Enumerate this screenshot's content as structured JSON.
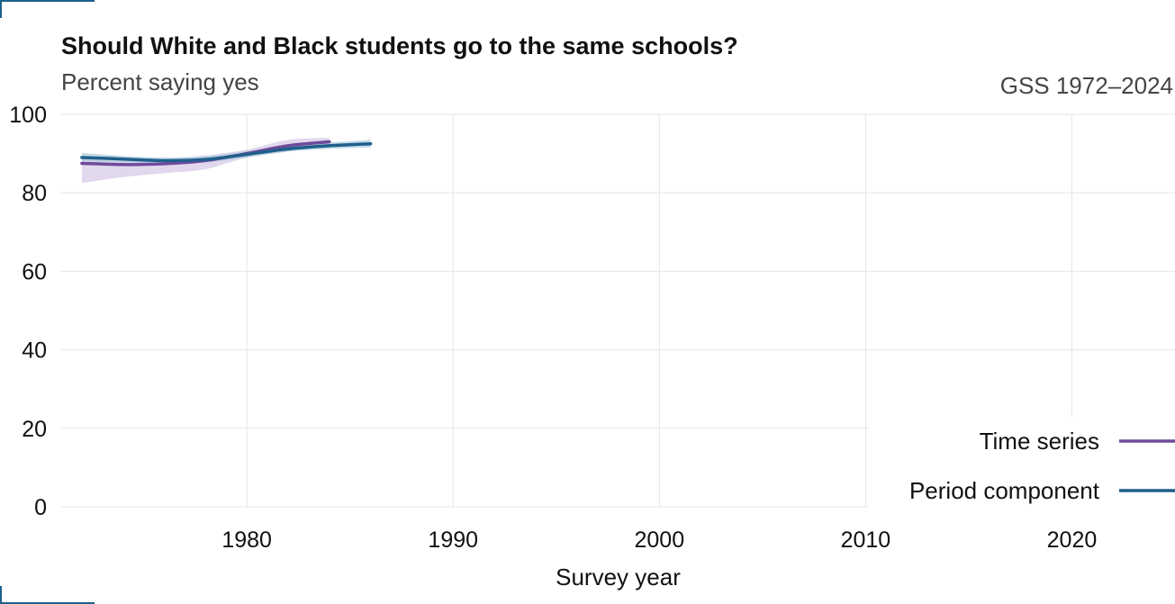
{
  "header": {
    "title": "Should White and Black students go to the same schools?",
    "subtitle": "Percent saying yes",
    "source": "GSS 1972–2024"
  },
  "colors": {
    "time_series": "#6f4a9b",
    "period_component": "#1f5f8b",
    "time_series_band": "#c9b8de",
    "period_band": "#9cc3d9",
    "grid": "#e6e6e6",
    "corner_mark": "#1f5f8b"
  },
  "chart_data": {
    "type": "line",
    "title": "Should White and Black students go to the same schools?",
    "subtitle": "Percent saying yes",
    "xlabel": "Survey year",
    "ylabel": "",
    "xlim": [
      1971,
      2025
    ],
    "ylim": [
      0,
      100
    ],
    "x_ticks": [
      1980,
      1990,
      2000,
      2010,
      2020
    ],
    "y_ticks": [
      0,
      20,
      40,
      60,
      80,
      100
    ],
    "grid": true,
    "legend_position": "bottom-right",
    "series": [
      {
        "name": "Time series",
        "color": "#6f4a9b",
        "x": [
          1972,
          1974,
          1976,
          1978,
          1980,
          1982,
          1984
        ],
        "y": [
          87.5,
          87.2,
          87.4,
          88.2,
          90.0,
          92.0,
          93.0
        ],
        "lower": [
          82.5,
          84.0,
          85.0,
          86.0,
          89.0,
          90.5,
          92.0
        ],
        "upper": [
          88.5,
          88.0,
          88.5,
          89.5,
          91.0,
          93.5,
          94.0
        ]
      },
      {
        "name": "Period component",
        "color": "#1f5f8b",
        "x": [
          1972,
          1974,
          1976,
          1978,
          1980,
          1982,
          1984,
          1986
        ],
        "y": [
          89.0,
          88.6,
          88.2,
          88.5,
          89.8,
          91.2,
          92.0,
          92.5
        ],
        "lower": [
          88.0,
          87.8,
          87.5,
          87.8,
          89.0,
          90.5,
          91.2,
          91.5
        ],
        "upper": [
          90.2,
          89.4,
          89.0,
          89.3,
          90.6,
          92.0,
          92.8,
          93.5
        ]
      }
    ]
  }
}
